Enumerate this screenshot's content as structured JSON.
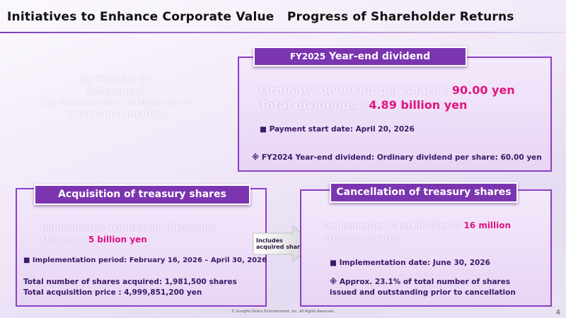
{
  "header": {
    "title": "Initiatives to Enhance Corporate Value   Progress of Shareholder Returns"
  },
  "note_left": {
    "line1": "By FY2026 1Q",
    "line2": "determined",
    "line3": "All shareholder returns have",
    "line4": "been implemented"
  },
  "dividend": {
    "title_prefix": "FY2025",
    "title_suffix": " Year-end dividend",
    "ordinary_label": "Ordinary dividend per share : ",
    "ordinary_value": "90.00 yen",
    "total_label": "Total dividends : ",
    "total_value": "4.89 billion yen",
    "payment_date": "■ Payment start date: April 20, 2026",
    "fy2024_note": "※ FY2024 Year-end dividend: Ordinary dividend per share: 60.00 yen"
  },
  "acquisition": {
    "title": "Acquisition of treasury shares",
    "lead_line1": "Implemented acquisition of treasury",
    "lead_line2_prefix": "shares of ",
    "lead_value": "5 billion yen",
    "period": "■ Implementation period: February 16, 2026 – April 30, 2026",
    "shares_acquired": "Total number of shares acquired: 1,981,500 shares",
    "acquisition_price": "Total acquisition price : 4,999,851,200 yen"
  },
  "arrow": {
    "line1": "Includes",
    "line2": "acquired shares"
  },
  "cancellation": {
    "title": "Cancellation of treasury shares",
    "lead_prefix": "Implemented cancellation of ",
    "lead_value": "16 million",
    "lead_line2": "treasury shares",
    "date": "■ Implementation date: June 30, 2026",
    "approx_line1": "※ Approx. 23.1% of total number of shares",
    "approx_line2": "issued and outstanding prior to cancellation"
  },
  "footer": {
    "copyright": "© GungHo Online Entertainment, Inc. All Rights Reserved.",
    "page": "4"
  },
  "colors": {
    "accent_purple": "#7b35b0",
    "box_border": "#8c3fc6",
    "highlight_pink": "#e0157f"
  }
}
